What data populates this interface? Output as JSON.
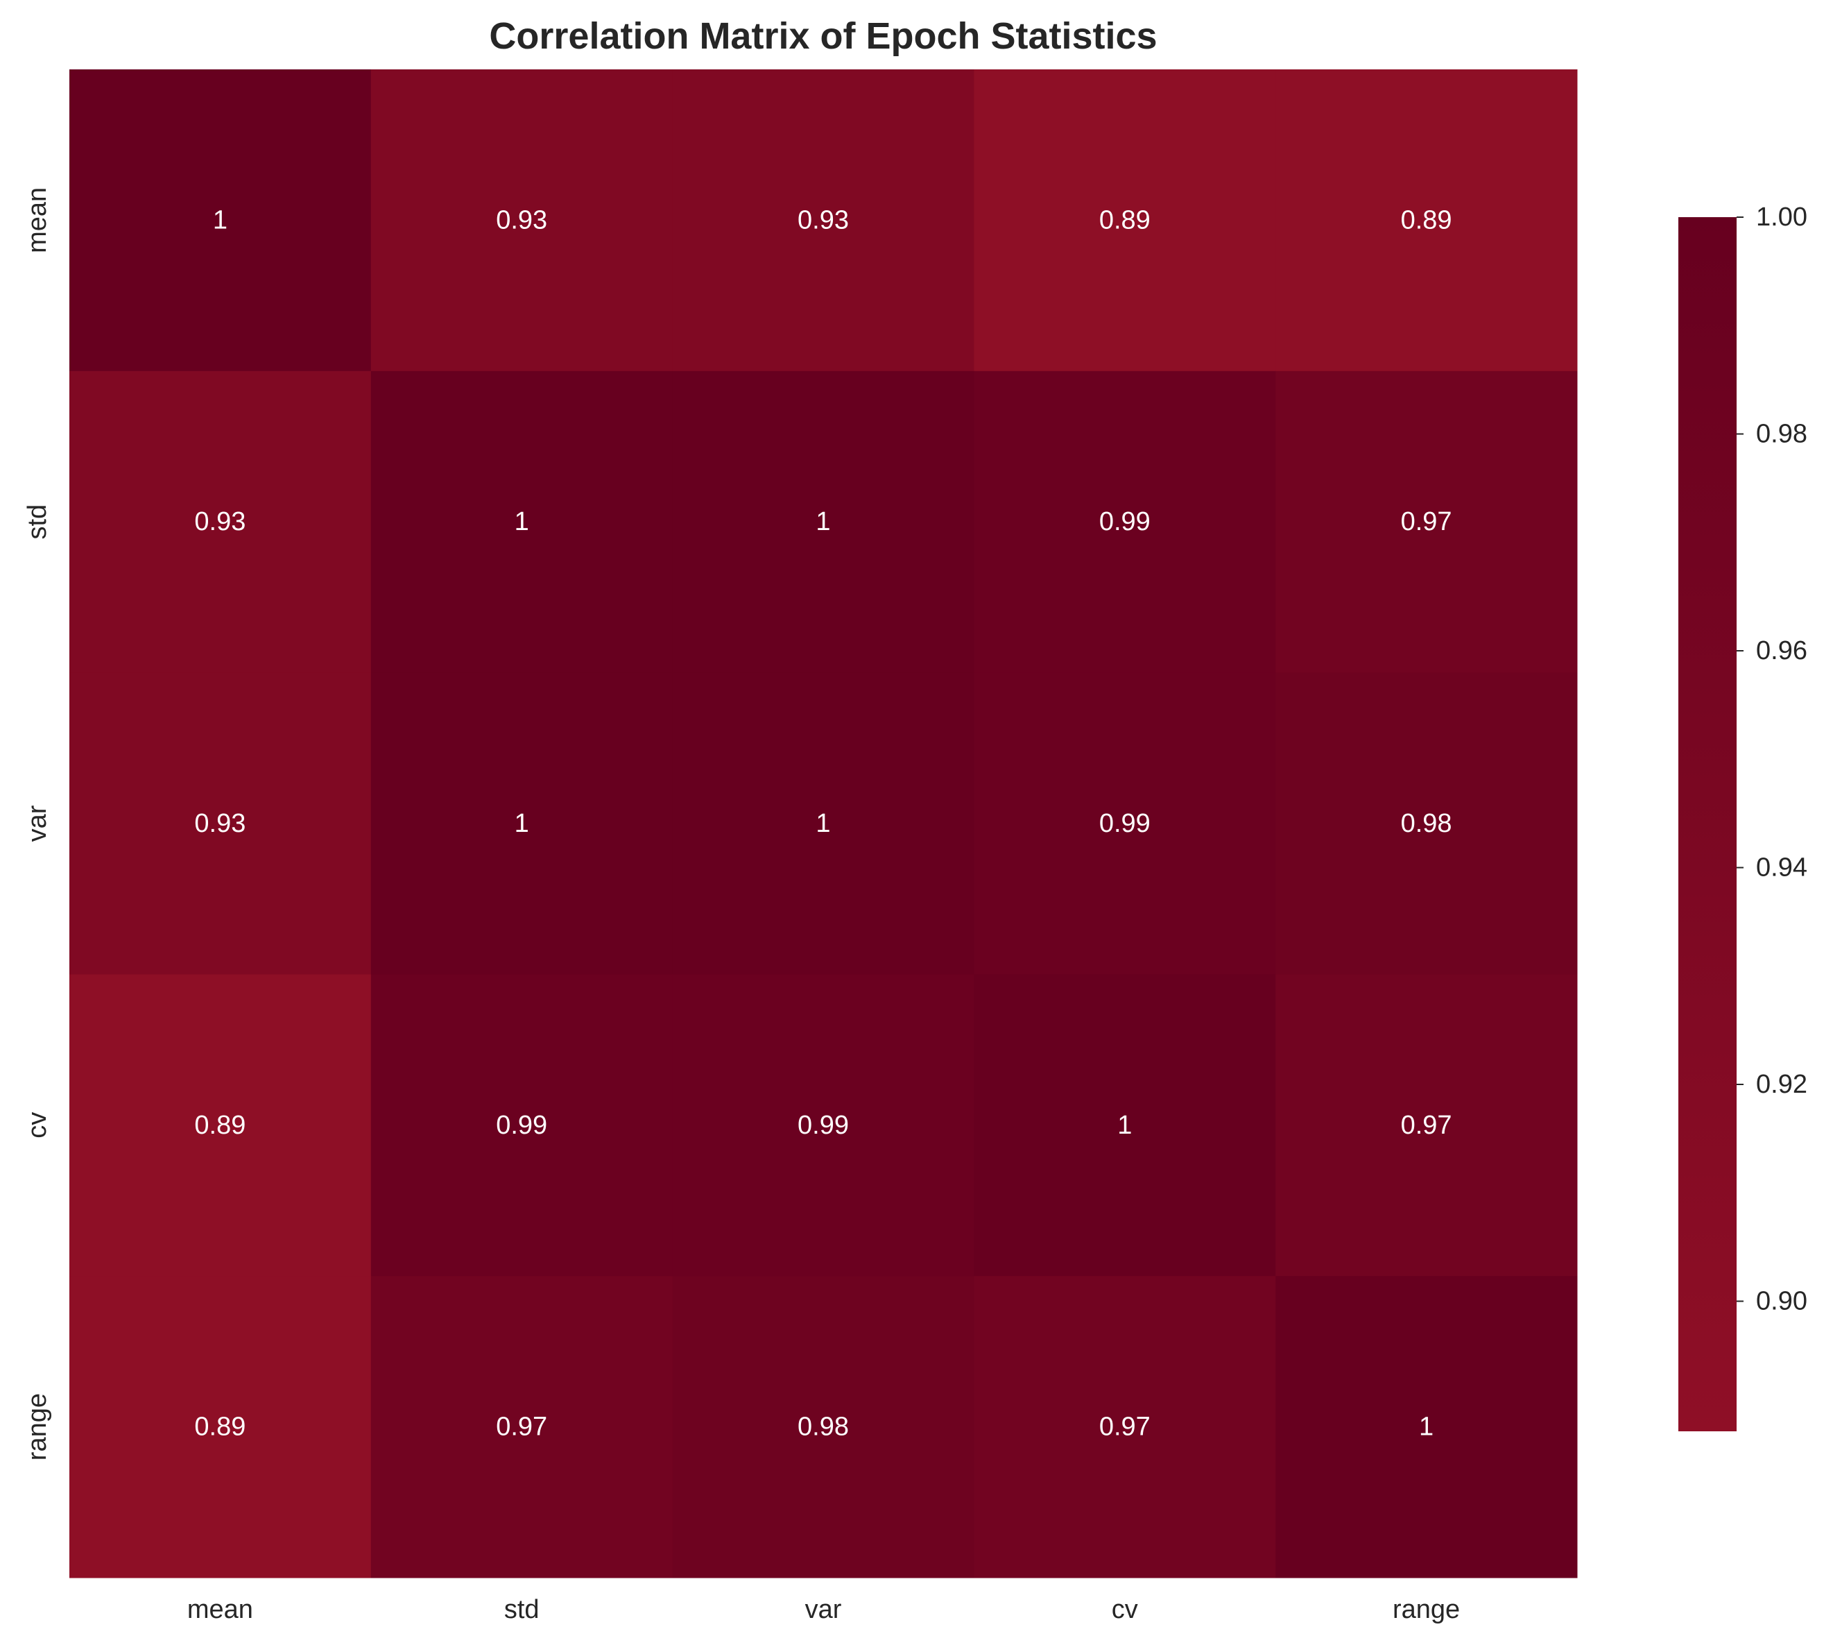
{
  "chart_data": {
    "type": "heatmap",
    "title": "Correlation Matrix of Epoch Statistics",
    "xlabel": "",
    "ylabel": "",
    "x_categories": [
      "mean",
      "std",
      "var",
      "cv",
      "range"
    ],
    "y_categories": [
      "mean",
      "std",
      "var",
      "cv",
      "range"
    ],
    "values": [
      [
        1.0,
        0.93,
        0.93,
        0.89,
        0.89
      ],
      [
        0.93,
        1.0,
        1.0,
        0.99,
        0.97
      ],
      [
        0.93,
        1.0,
        1.0,
        0.99,
        0.98
      ],
      [
        0.89,
        0.99,
        0.99,
        1.0,
        0.97
      ],
      [
        0.89,
        0.97,
        0.98,
        0.97,
        1.0
      ]
    ],
    "annotations": [
      [
        "1",
        "0.93",
        "0.93",
        "0.89",
        "0.89"
      ],
      [
        "0.93",
        "1",
        "1",
        "0.99",
        "0.97"
      ],
      [
        "0.93",
        "1",
        "1",
        "0.99",
        "0.98"
      ],
      [
        "0.89",
        "0.99",
        "0.99",
        "1",
        "0.97"
      ],
      [
        "0.89",
        "0.97",
        "0.98",
        "0.97",
        "1"
      ]
    ],
    "colorbar": {
      "range": [
        0.888,
        1.0
      ],
      "ticks": [
        "0.90",
        "0.92",
        "0.94",
        "0.96",
        "0.98",
        "1.00"
      ],
      "tick_values": [
        0.9,
        0.92,
        0.94,
        0.96,
        0.98,
        1.0
      ],
      "color_low": "#8f0f26",
      "color_high": "#67001f"
    }
  }
}
